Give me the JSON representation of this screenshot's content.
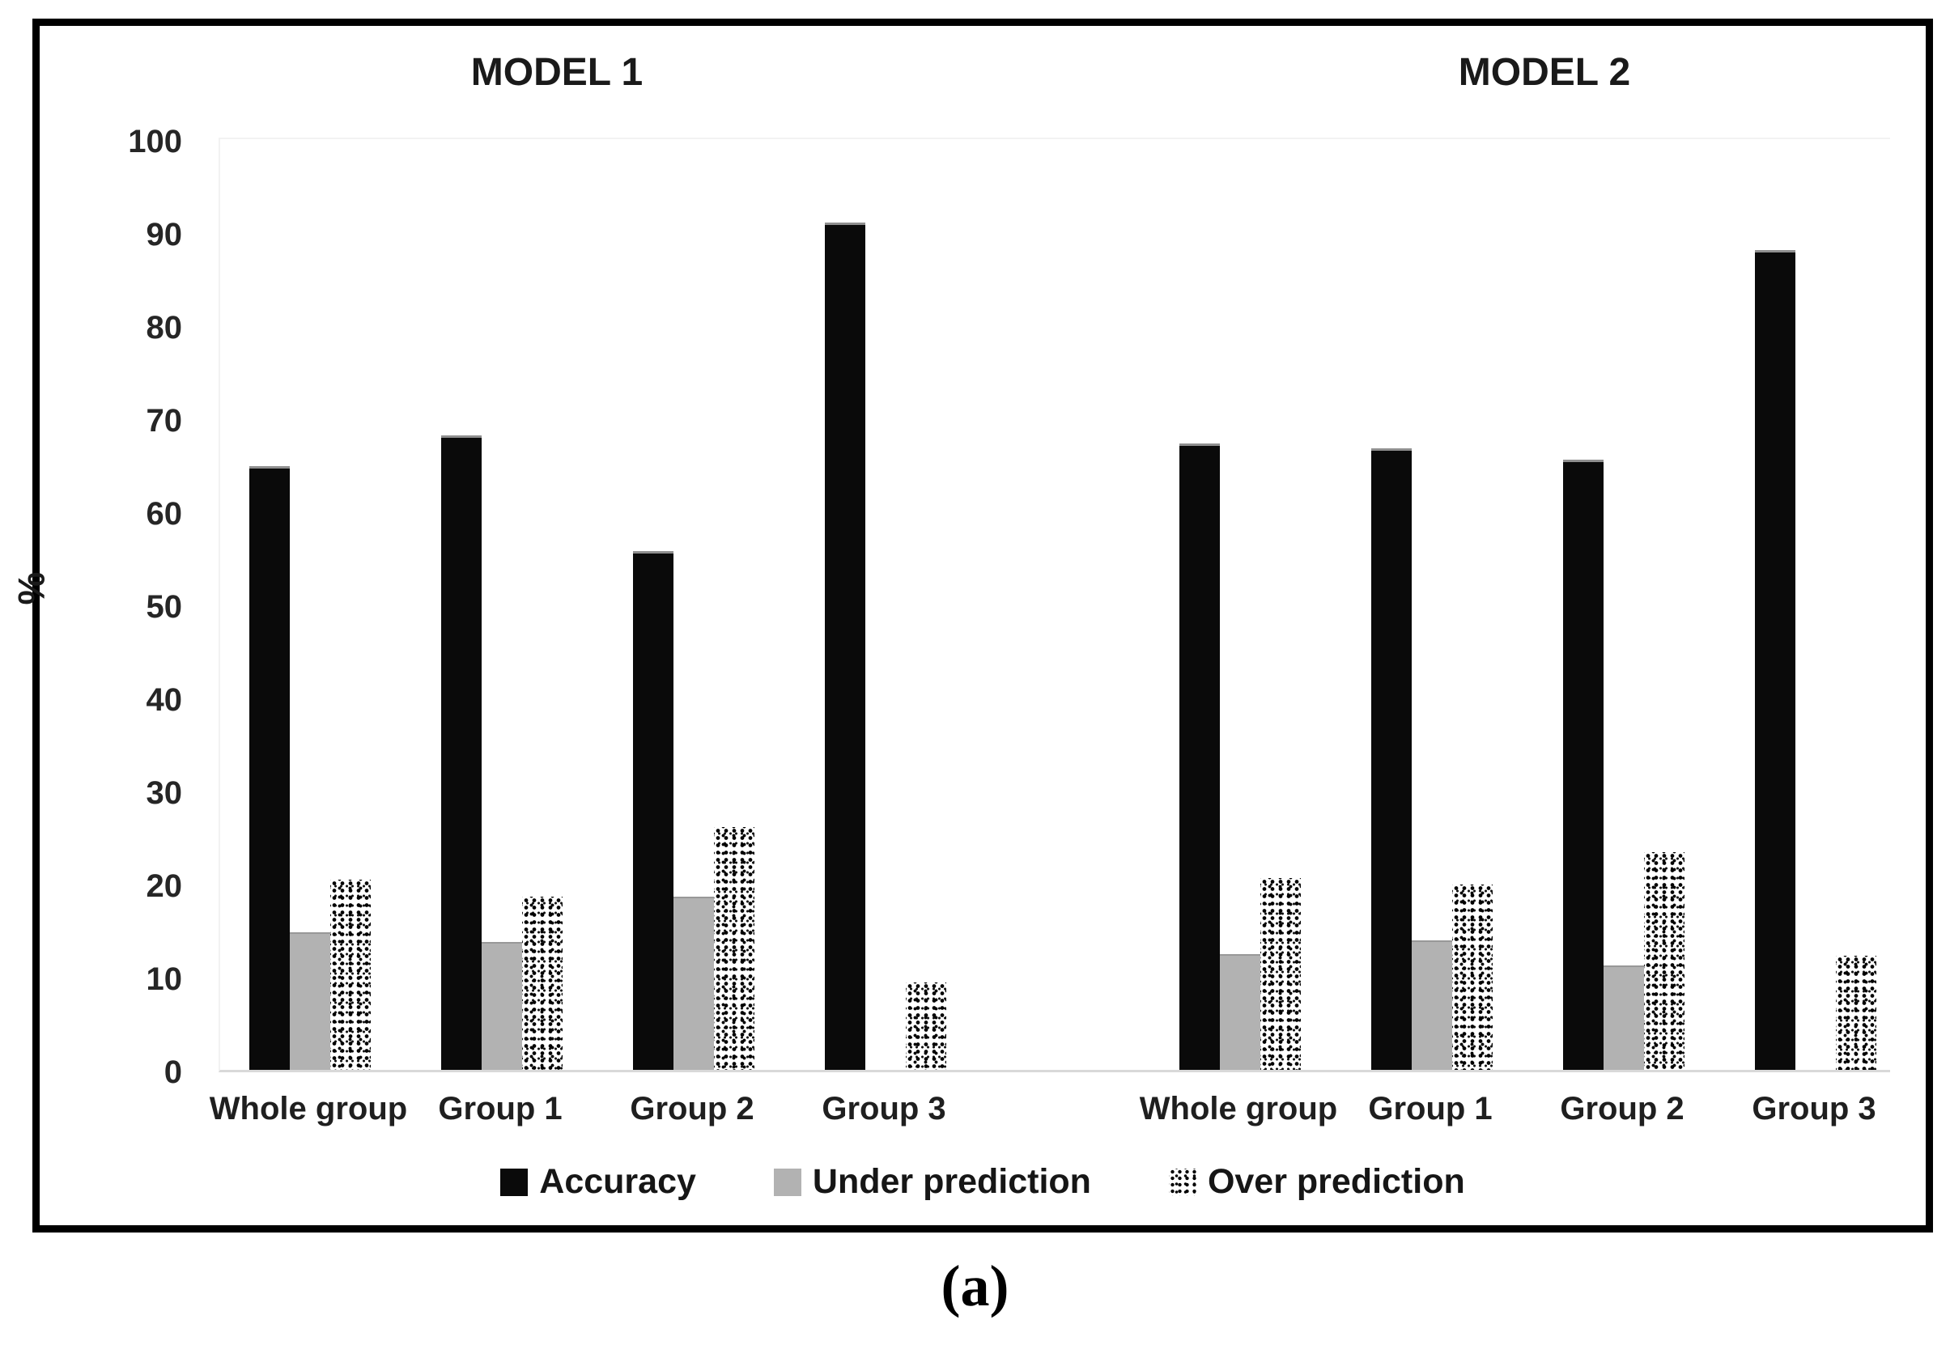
{
  "figure": {
    "caption": "(a)"
  },
  "chart_data": {
    "type": "bar",
    "title": "",
    "xlabel": "",
    "ylabel": "%",
    "ylim": [
      0,
      100
    ],
    "yticks": [
      100,
      90,
      80,
      70,
      60,
      50,
      40,
      30,
      20,
      10,
      0
    ],
    "grid": false,
    "legend": [
      "Accuracy",
      "Under prediction",
      "Over prediction"
    ],
    "legend_position": "bottom",
    "colors": {
      "accuracy": "#0a0a0a",
      "under_prediction": "#b2b2b2",
      "over_prediction": "black-speckle-on-white"
    },
    "panels": [
      {
        "title": "MODEL 1",
        "categories": [
          "Whole group",
          "Group 1",
          "Group 2",
          "Group 3"
        ],
        "series": [
          {
            "name": "Accuracy",
            "values": [
              64.6,
              67.9,
              55.5,
              90.8
            ]
          },
          {
            "name": "Under prediction",
            "values": [
              14.6,
              13.6,
              18.4,
              0
            ]
          },
          {
            "name": "Over prediction",
            "values": [
              20.4,
              18.6,
              26.1,
              9.4
            ]
          }
        ]
      },
      {
        "title": "MODEL 2",
        "categories": [
          "Whole group",
          "Group 1",
          "Group 2",
          "Group 3"
        ],
        "series": [
          {
            "name": "Accuracy",
            "values": [
              67.0,
              66.5,
              65.3,
              87.8
            ]
          },
          {
            "name": "Under prediction",
            "values": [
              12.3,
              13.7,
              11.0,
              0
            ]
          },
          {
            "name": "Over prediction",
            "values": [
              20.6,
              19.9,
              23.4,
              12.3
            ]
          }
        ]
      }
    ]
  }
}
